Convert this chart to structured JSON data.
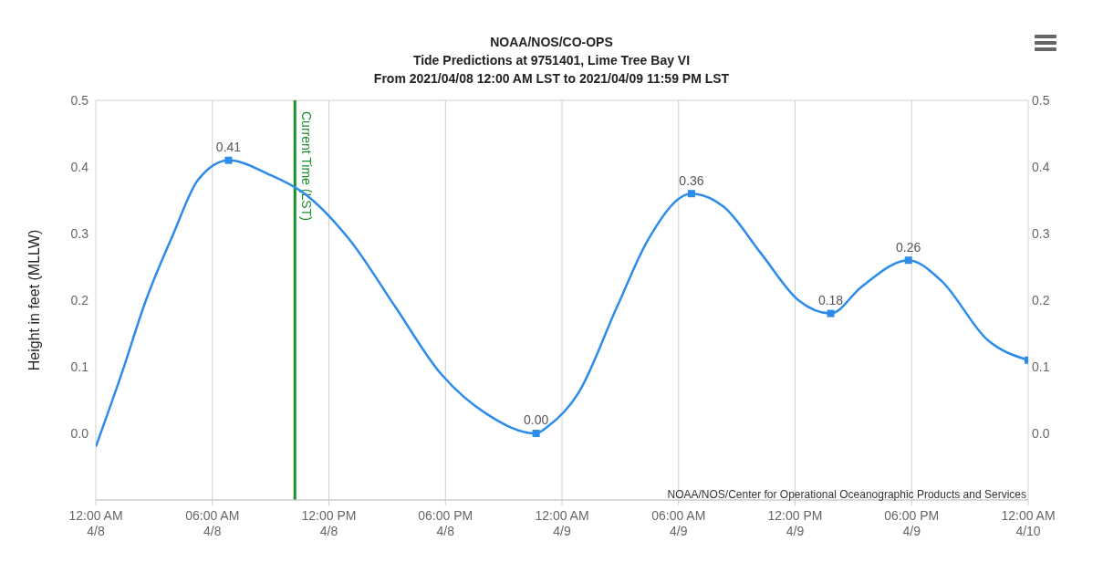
{
  "chart_data": {
    "type": "line",
    "title": "NOAA/NOS/CO-OPS",
    "subtitle": "Tide Predictions at 9751401, Lime Tree Bay VI\nFrom 2021/04/08 12:00 AM LST to 2021/04/09 11:59 PM LST",
    "ylabel": "Height in feet (MLLW)",
    "annotations": [
      "NOAA/NOS/Center for Operational Oceanographic Products and Services"
    ],
    "xlim": [
      "2021-04-08T00:00",
      "2021-04-10T00:00"
    ],
    "xticks": [
      {
        "value": "2021-04-08T00:00",
        "label": "12:00 AM\n4/8"
      },
      {
        "value": "2021-04-08T06:00",
        "label": "06:00 AM\n4/8"
      },
      {
        "value": "2021-04-08T12:00",
        "label": "12:00 PM\n4/8"
      },
      {
        "value": "2021-04-08T18:00",
        "label": "06:00 PM\n4/8"
      },
      {
        "value": "2021-04-09T00:00",
        "label": "12:00 AM\n4/9"
      },
      {
        "value": "2021-04-09T06:00",
        "label": "06:00 AM\n4/9"
      },
      {
        "value": "2021-04-09T12:00",
        "label": "12:00 PM\n4/9"
      },
      {
        "value": "2021-04-09T18:00",
        "label": "06:00 PM\n4/9"
      },
      {
        "value": "2021-04-10T00:00",
        "label": "12:00 AM\n4/10"
      }
    ],
    "ylim": [
      -0.1,
      0.5
    ],
    "yticks": [
      {
        "value": 0,
        "label": "0.0"
      },
      0.1,
      0.2,
      0.3,
      0.4,
      0.5
    ],
    "y2lim": [
      -0.1,
      0.5
    ],
    "y2ticks": [
      {
        "value": 0,
        "label": "0.0"
      },
      0.1,
      0.2,
      0.3,
      0.4,
      0.5
    ],
    "grid": true,
    "ref_lines": [
      {
        "axis": "x",
        "value": "2021-04-08T10:15",
        "label": "Current Time (LST)",
        "color": "#1a8f2a"
      }
    ],
    "series": [
      {
        "color": "#2d8ceb",
        "marker": "none",
        "x": [
          "2021-04-08T00:00",
          "2021-04-08T01:20",
          "2021-04-08T02:35",
          "2021-04-08T04:00",
          "2021-04-08T05:15",
          "2021-04-08T06:50",
          "2021-04-08T08:50",
          "2021-04-08T10:45",
          "2021-04-08T13:05",
          "2021-04-08T15:25",
          "2021-04-08T17:45",
          "2021-04-08T20:05",
          "2021-04-08T22:40",
          "2021-04-08T23:15",
          "2021-04-09T00:50",
          "2021-04-09T02:50",
          "2021-04-09T04:25",
          "2021-04-09T06:40",
          "2021-04-09T08:20",
          "2021-04-09T10:15",
          "2021-04-09T12:10",
          "2021-04-09T13:50",
          "2021-04-09T15:25",
          "2021-04-09T17:50",
          "2021-04-09T19:30",
          "2021-04-09T21:55",
          "2021-04-10T00:00"
        ],
        "values": [
          -0.02,
          0.09,
          0.2,
          0.3,
          0.38,
          0.41,
          0.39,
          0.36,
          0.29,
          0.19,
          0.09,
          0.03,
          0.0,
          0.01,
          0.06,
          0.19,
          0.29,
          0.36,
          0.34,
          0.27,
          0.2,
          0.18,
          0.22,
          0.26,
          0.23,
          0.14,
          0.11
        ]
      },
      {
        "type": "scatter",
        "color": "#2d8ceb",
        "marker": "square",
        "x": [
          "2021-04-08T06:50",
          "2021-04-08T22:40",
          "2021-04-09T06:40",
          "2021-04-09T13:50",
          "2021-04-09T17:50",
          "2021-04-10T00:00"
        ],
        "values": [
          0.41,
          0.0,
          0.36,
          0.18,
          0.26,
          0.11
        ],
        "value_labels": [
          "0.41",
          "0.00",
          "0.36",
          "0.18",
          "0.26",
          null
        ]
      }
    ]
  }
}
